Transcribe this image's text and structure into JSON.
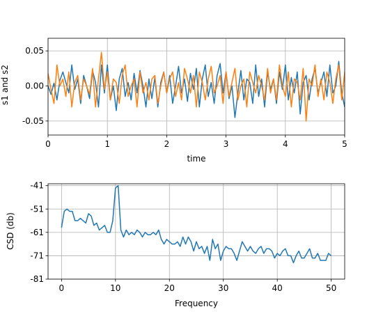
{
  "colors": {
    "series1": "#1f77b4",
    "series2": "#ff7f0e",
    "grid": "#b0b0b0"
  },
  "chart_data": [
    {
      "type": "line",
      "title": "",
      "xlabel": "time",
      "ylabel": "s1 and s2",
      "xlim": [
        0,
        5
      ],
      "ylim": [
        -0.07,
        0.068
      ],
      "grid": true,
      "xticks": [
        "0",
        "1",
        "2",
        "3",
        "4",
        "5"
      ],
      "yticks": [
        "0.05",
        "0.00",
        "-0.05"
      ],
      "series": [
        {
          "x": [
            0,
            0.05,
            0.1,
            0.15,
            0.2,
            0.25,
            0.3,
            0.35,
            0.4,
            0.45,
            0.5,
            0.55,
            0.6,
            0.65,
            0.7,
            0.75,
            0.8,
            0.85,
            0.9,
            0.95,
            1.0,
            1.05,
            1.1,
            1.15,
            1.2,
            1.25,
            1.3,
            1.35,
            1.4,
            1.45,
            1.5,
            1.55,
            1.6,
            1.65,
            1.7,
            1.75,
            1.8,
            1.85,
            1.9,
            1.95,
            2.0,
            2.05,
            2.1,
            2.15,
            2.2,
            2.25,
            2.3,
            2.35,
            2.4,
            2.45,
            2.5,
            2.55,
            2.6,
            2.65,
            2.7,
            2.75,
            2.8,
            2.85,
            2.9,
            2.95,
            3.0,
            3.05,
            3.1,
            3.15,
            3.2,
            3.25,
            3.3,
            3.35,
            3.4,
            3.45,
            3.5,
            3.55,
            3.6,
            3.65,
            3.7,
            3.75,
            3.8,
            3.85,
            3.9,
            3.95,
            4.0,
            4.05,
            4.1,
            4.15,
            4.2,
            4.25,
            4.3,
            4.35,
            4.4,
            4.45,
            4.5,
            4.55,
            4.6,
            4.65,
            4.7,
            4.75,
            4.8,
            4.85,
            4.9,
            4.95,
            5.0
          ],
          "y": [
            0.0,
            -0.012,
            0.004,
            -0.02,
            0.008,
            0.02,
            0.005,
            -0.01,
            0.03,
            -0.005,
            0.01,
            -0.025,
            0.015,
            0.0,
            -0.018,
            0.022,
            0.005,
            -0.03,
            0.03,
            -0.01,
            0.03,
            -0.02,
            0.0,
            -0.035,
            0.01,
            0.025,
            -0.015,
            0.005,
            -0.02,
            0.018,
            -0.01,
            0.022,
            0.0,
            -0.03,
            0.01,
            -0.018,
            0.012,
            -0.03,
            0.005,
            0.02,
            -0.01,
            0.015,
            -0.025,
            0.0,
            0.028,
            -0.01,
            0.01,
            -0.022,
            0.018,
            -0.005,
            0.025,
            -0.03,
            0.01,
            0.03,
            -0.015,
            0.005,
            -0.025,
            0.015,
            0.032,
            -0.01,
            0.02,
            -0.018,
            0.0,
            -0.045,
            -0.01,
            0.022,
            -0.02,
            0.01,
            0.005,
            -0.025,
            0.03,
            -0.015,
            0.01,
            -0.03,
            0.02,
            -0.005,
            0.01,
            -0.025,
            0.02,
            -0.005,
            0.03,
            -0.02,
            0.012,
            -0.01,
            0.02,
            -0.04,
            0.005,
            0.015,
            -0.02,
            0.01,
            0.025,
            -0.01,
            0.005,
            0.02,
            -0.015,
            0.03,
            -0.01,
            0.0,
            0.035,
            -0.01,
            -0.03
          ]
        },
        {
          "x": [
            0,
            0.05,
            0.1,
            0.15,
            0.2,
            0.25,
            0.3,
            0.35,
            0.4,
            0.45,
            0.5,
            0.55,
            0.6,
            0.65,
            0.7,
            0.75,
            0.8,
            0.85,
            0.9,
            0.95,
            1.0,
            1.05,
            1.1,
            1.15,
            1.2,
            1.25,
            1.3,
            1.35,
            1.4,
            1.45,
            1.5,
            1.55,
            1.6,
            1.65,
            1.7,
            1.75,
            1.8,
            1.85,
            1.9,
            1.95,
            2.0,
            2.05,
            2.1,
            2.15,
            2.2,
            2.25,
            2.3,
            2.35,
            2.4,
            2.45,
            2.5,
            2.55,
            2.6,
            2.65,
            2.7,
            2.75,
            2.8,
            2.85,
            2.9,
            2.95,
            3.0,
            3.05,
            3.1,
            3.15,
            3.2,
            3.25,
            3.3,
            3.35,
            3.4,
            3.45,
            3.5,
            3.55,
            3.6,
            3.65,
            3.7,
            3.75,
            3.8,
            3.85,
            3.9,
            3.95,
            4.0,
            4.05,
            4.1,
            4.15,
            4.2,
            4.25,
            4.3,
            4.35,
            4.4,
            4.45,
            4.5,
            4.55,
            4.6,
            4.65,
            4.7,
            4.75,
            4.8,
            4.85,
            4.9,
            4.95,
            5.0
          ],
          "y": [
            0.018,
            -0.005,
            -0.025,
            0.03,
            0.0,
            0.01,
            -0.015,
            0.02,
            -0.03,
            0.005,
            0.015,
            -0.02,
            0.01,
            0.0,
            -0.012,
            0.025,
            -0.03,
            0.01,
            0.048,
            -0.005,
            0.02,
            -0.02,
            0.01,
            0.005,
            -0.025,
            0.015,
            0.03,
            -0.015,
            0.0,
            0.01,
            -0.03,
            0.02,
            -0.01,
            0.005,
            -0.02,
            0.01,
            0.015,
            -0.025,
            0.0,
            0.02,
            -0.01,
            0.01,
            0.02,
            -0.015,
            0.005,
            -0.02,
            0.025,
            0.01,
            -0.01,
            0.015,
            -0.03,
            0.02,
            0.005,
            -0.02,
            0.01,
            0.028,
            -0.01,
            0.0,
            0.015,
            -0.025,
            0.02,
            -0.015,
            0.005,
            0.025,
            -0.02,
            0.0,
            0.01,
            -0.03,
            0.02,
            0.005,
            -0.01,
            0.015,
            0.0,
            -0.02,
            0.025,
            -0.01,
            0.01,
            -0.02,
            0.03,
            0.0,
            -0.015,
            0.02,
            -0.03,
            0.01,
            0.005,
            -0.02,
            0.025,
            -0.05,
            0.01,
            0.0,
            0.03,
            -0.015,
            0.01,
            -0.02,
            0.02,
            0.005,
            -0.025,
            0.01,
            0.03,
            -0.02,
            0.02
          ]
        }
      ]
    },
    {
      "type": "line",
      "title": "",
      "xlabel": "Frequency",
      "ylabel": "CSD (db)",
      "xlim": [
        -2.5,
        52.5
      ],
      "ylim": [
        -81,
        -40.2
      ],
      "grid": true,
      "xticks": [
        "0",
        "10",
        "20",
        "30",
        "40",
        "50"
      ],
      "yticks": [
        "-41",
        "-51",
        "-61",
        "-71",
        "-81"
      ],
      "series": [
        {
          "x": [
            0,
            0.5,
            1,
            1.5,
            2,
            2.5,
            3,
            3.5,
            4,
            4.5,
            5,
            5.5,
            6,
            6.5,
            7,
            7.5,
            8,
            8.5,
            9,
            9.5,
            10,
            10.5,
            11,
            11.5,
            12,
            12.5,
            13,
            13.5,
            14,
            14.5,
            15,
            15.5,
            16,
            16.5,
            17,
            17.5,
            18,
            18.5,
            19,
            19.5,
            20,
            20.5,
            21,
            21.5,
            22,
            22.5,
            23,
            23.5,
            24,
            24.5,
            25,
            25.5,
            26,
            26.5,
            27,
            27.5,
            28,
            28.5,
            29,
            29.5,
            30,
            30.5,
            31,
            31.5,
            32,
            32.5,
            33,
            33.5,
            34,
            34.5,
            35,
            35.5,
            36,
            36.5,
            37,
            37.5,
            38,
            38.5,
            39,
            39.5,
            40,
            40.5,
            41,
            41.5,
            42,
            42.5,
            43,
            43.5,
            44,
            44.5,
            45,
            45.5,
            46,
            46.5,
            47,
            47.5,
            48,
            48.5,
            49,
            49.5,
            50
          ],
          "y": [
            -59,
            -52,
            -51,
            -52,
            -52,
            -56,
            -56,
            -55,
            -56,
            -57,
            -53,
            -54,
            -58,
            -57,
            -60,
            -59,
            -58,
            -61,
            -61,
            -56,
            -42,
            -41,
            -60,
            -63,
            -60,
            -62,
            -61,
            -62,
            -60,
            -61,
            -63,
            -61,
            -62,
            -62,
            -61,
            -62,
            -60,
            -64,
            -66,
            -64,
            -65,
            -66,
            -66,
            -65,
            -67,
            -63,
            -66,
            -63,
            -65,
            -69,
            -65,
            -68,
            -67,
            -70,
            -67,
            -73,
            -64,
            -68,
            -66,
            -73,
            -69,
            -67,
            -68,
            -68,
            -70,
            -73,
            -69,
            -65,
            -67,
            -69,
            -67,
            -69,
            -70,
            -68,
            -67,
            -70,
            -68,
            -68,
            -69,
            -72,
            -70,
            -71,
            -69,
            -68,
            -71,
            -71,
            -74,
            -71,
            -69,
            -72,
            -72,
            -70,
            -68,
            -72,
            -72,
            -70,
            -73,
            -73,
            -73,
            -70,
            -71
          ]
        }
      ]
    }
  ]
}
